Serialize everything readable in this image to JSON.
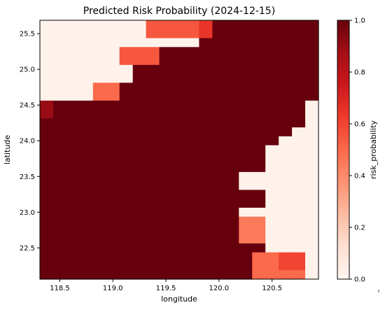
{
  "chart_data": {
    "type": "heatmap",
    "title": "Predicted Risk Probability (2024-12-15)",
    "xlabel": "longitude",
    "ylabel": "latitude",
    "colorbar_label": "risk_probability",
    "colormap": "Reds",
    "colormap_stops": [
      "#fff5f0",
      "#fee0d2",
      "#fcbba1",
      "#fc9272",
      "#fb6a4a",
      "#ef3b2c",
      "#cb181d",
      "#a50f15",
      "#67000d"
    ],
    "vmin": 0.0,
    "vmax": 1.0,
    "x_ticks": [
      118.5,
      119.0,
      119.5,
      120.0,
      120.5
    ],
    "x_tick_labels": [
      "118.5",
      "119.0",
      "119.5",
      "120.0",
      "120.5"
    ],
    "y_ticks": [
      22.5,
      23.0,
      23.5,
      24.0,
      24.5,
      25.0,
      25.5
    ],
    "y_tick_labels": [
      "22.5",
      "23.0",
      "23.5",
      "24.0",
      "24.5",
      "25.0",
      "25.5"
    ],
    "colorbar_ticks": [
      0.0,
      0.2,
      0.4,
      0.6,
      0.8,
      1.0
    ],
    "colorbar_tick_labels": [
      "0.0",
      "0.2",
      "0.4",
      "0.6",
      "0.8",
      "1.0"
    ],
    "xlim": [
      118.3125,
      120.9375
    ],
    "ylim": [
      22.0625,
      25.6875
    ],
    "grid": false,
    "x": [
      118.375,
      118.5,
      118.625,
      118.75,
      118.875,
      119.0,
      119.125,
      119.25,
      119.375,
      119.5,
      119.625,
      119.75,
      119.875,
      120.0,
      120.125,
      120.25,
      120.375,
      120.5,
      120.625,
      120.75,
      120.875
    ],
    "y": [
      25.625,
      25.5,
      25.375,
      25.25,
      25.125,
      25.0,
      24.875,
      24.75,
      24.625,
      24.5,
      24.375,
      24.25,
      24.125,
      24.0,
      23.875,
      23.75,
      23.625,
      23.5,
      23.375,
      23.25,
      23.125,
      23.0,
      22.875,
      22.75,
      22.625,
      22.5,
      22.375,
      22.25,
      22.125
    ],
    "values": [
      [
        0.02,
        0.02,
        0.02,
        0.02,
        0.02,
        0.02,
        0.02,
        0.02,
        0.55,
        0.55,
        0.55,
        0.55,
        0.65,
        1.0,
        1.0,
        1.0,
        1.0,
        1.0,
        1.0,
        1.0,
        1.0
      ],
      [
        0.02,
        0.02,
        0.02,
        0.02,
        0.02,
        0.02,
        0.02,
        0.02,
        0.55,
        0.55,
        0.55,
        0.55,
        0.65,
        1.0,
        1.0,
        1.0,
        1.0,
        1.0,
        1.0,
        1.0,
        1.0
      ],
      [
        0.02,
        0.02,
        0.02,
        0.02,
        0.02,
        0.02,
        0.02,
        0.02,
        0.02,
        0.02,
        0.02,
        0.02,
        1.0,
        1.0,
        1.0,
        1.0,
        1.0,
        1.0,
        1.0,
        1.0,
        1.0
      ],
      [
        0.02,
        0.02,
        0.02,
        0.02,
        0.02,
        0.02,
        0.55,
        0.55,
        0.55,
        1.0,
        1.0,
        1.0,
        1.0,
        1.0,
        1.0,
        1.0,
        1.0,
        1.0,
        1.0,
        1.0,
        1.0
      ],
      [
        0.02,
        0.02,
        0.02,
        0.02,
        0.02,
        0.02,
        0.55,
        0.55,
        0.55,
        1.0,
        1.0,
        1.0,
        1.0,
        1.0,
        1.0,
        1.0,
        1.0,
        1.0,
        1.0,
        1.0,
        1.0
      ],
      [
        0.02,
        0.02,
        0.02,
        0.02,
        0.02,
        0.02,
        0.02,
        1.0,
        1.0,
        1.0,
        1.0,
        1.0,
        1.0,
        1.0,
        1.0,
        1.0,
        1.0,
        1.0,
        1.0,
        1.0,
        1.0
      ],
      [
        0.02,
        0.02,
        0.02,
        0.02,
        0.02,
        0.02,
        0.02,
        1.0,
        1.0,
        1.0,
        1.0,
        1.0,
        1.0,
        1.0,
        1.0,
        1.0,
        1.0,
        1.0,
        1.0,
        1.0,
        1.0
      ],
      [
        0.02,
        0.02,
        0.02,
        0.02,
        0.5,
        0.5,
        1.0,
        1.0,
        1.0,
        1.0,
        1.0,
        1.0,
        1.0,
        1.0,
        1.0,
        1.0,
        1.0,
        1.0,
        1.0,
        1.0,
        1.0
      ],
      [
        0.02,
        0.02,
        0.02,
        0.02,
        0.5,
        0.5,
        1.0,
        1.0,
        1.0,
        1.0,
        1.0,
        1.0,
        1.0,
        1.0,
        1.0,
        1.0,
        1.0,
        1.0,
        1.0,
        1.0,
        1.0
      ],
      [
        0.9,
        1.0,
        1.0,
        1.0,
        1.0,
        1.0,
        1.0,
        1.0,
        1.0,
        1.0,
        1.0,
        1.0,
        1.0,
        1.0,
        1.0,
        1.0,
        1.0,
        1.0,
        1.0,
        1.0,
        0.02
      ],
      [
        0.9,
        1.0,
        1.0,
        1.0,
        1.0,
        1.0,
        1.0,
        1.0,
        1.0,
        1.0,
        1.0,
        1.0,
        1.0,
        1.0,
        1.0,
        1.0,
        1.0,
        1.0,
        1.0,
        1.0,
        0.02
      ],
      [
        1.0,
        1.0,
        1.0,
        1.0,
        1.0,
        1.0,
        1.0,
        1.0,
        1.0,
        1.0,
        1.0,
        1.0,
        1.0,
        1.0,
        1.0,
        1.0,
        1.0,
        1.0,
        1.0,
        1.0,
        0.02
      ],
      [
        1.0,
        1.0,
        1.0,
        1.0,
        1.0,
        1.0,
        1.0,
        1.0,
        1.0,
        1.0,
        1.0,
        1.0,
        1.0,
        1.0,
        1.0,
        1.0,
        1.0,
        1.0,
        1.0,
        0.02,
        0.02
      ],
      [
        1.0,
        1.0,
        1.0,
        1.0,
        1.0,
        1.0,
        1.0,
        1.0,
        1.0,
        1.0,
        1.0,
        1.0,
        1.0,
        1.0,
        1.0,
        1.0,
        1.0,
        1.0,
        0.02,
        0.02,
        0.02
      ],
      [
        1.0,
        1.0,
        1.0,
        1.0,
        1.0,
        1.0,
        1.0,
        1.0,
        1.0,
        1.0,
        1.0,
        1.0,
        1.0,
        1.0,
        1.0,
        1.0,
        1.0,
        0.02,
        0.02,
        0.02,
        0.02
      ],
      [
        1.0,
        1.0,
        1.0,
        1.0,
        1.0,
        1.0,
        1.0,
        1.0,
        1.0,
        1.0,
        1.0,
        1.0,
        1.0,
        1.0,
        1.0,
        1.0,
        1.0,
        0.02,
        0.02,
        0.02,
        0.02
      ],
      [
        1.0,
        1.0,
        1.0,
        1.0,
        1.0,
        1.0,
        1.0,
        1.0,
        1.0,
        1.0,
        1.0,
        1.0,
        1.0,
        1.0,
        1.0,
        1.0,
        1.0,
        0.02,
        0.02,
        0.02,
        0.02
      ],
      [
        1.0,
        1.0,
        1.0,
        1.0,
        1.0,
        1.0,
        1.0,
        1.0,
        1.0,
        1.0,
        1.0,
        1.0,
        1.0,
        1.0,
        1.0,
        0.02,
        0.02,
        0.02,
        0.02,
        0.02,
        0.02
      ],
      [
        1.0,
        1.0,
        1.0,
        1.0,
        1.0,
        1.0,
        1.0,
        1.0,
        1.0,
        1.0,
        1.0,
        1.0,
        1.0,
        1.0,
        1.0,
        0.02,
        0.02,
        0.02,
        0.02,
        0.02,
        0.02
      ],
      [
        1.0,
        1.0,
        1.0,
        1.0,
        1.0,
        1.0,
        1.0,
        1.0,
        1.0,
        1.0,
        1.0,
        1.0,
        1.0,
        1.0,
        1.0,
        1.0,
        1.0,
        0.02,
        0.02,
        0.02,
        0.02
      ],
      [
        1.0,
        1.0,
        1.0,
        1.0,
        1.0,
        1.0,
        1.0,
        1.0,
        1.0,
        1.0,
        1.0,
        1.0,
        1.0,
        1.0,
        1.0,
        1.0,
        1.0,
        0.02,
        0.02,
        0.02,
        0.02
      ],
      [
        1.0,
        1.0,
        1.0,
        1.0,
        1.0,
        1.0,
        1.0,
        1.0,
        1.0,
        1.0,
        1.0,
        1.0,
        1.0,
        1.0,
        1.0,
        0.02,
        0.02,
        0.02,
        0.02,
        0.02,
        0.02
      ],
      [
        1.0,
        1.0,
        1.0,
        1.0,
        1.0,
        1.0,
        1.0,
        1.0,
        1.0,
        1.0,
        1.0,
        1.0,
        1.0,
        1.0,
        1.0,
        0.45,
        0.45,
        0.02,
        0.02,
        0.02,
        0.02
      ],
      [
        1.0,
        1.0,
        1.0,
        1.0,
        1.0,
        1.0,
        1.0,
        1.0,
        1.0,
        1.0,
        1.0,
        1.0,
        1.0,
        1.0,
        1.0,
        0.45,
        0.45,
        0.02,
        0.02,
        0.02,
        0.02
      ],
      [
        1.0,
        1.0,
        1.0,
        1.0,
        1.0,
        1.0,
        1.0,
        1.0,
        1.0,
        1.0,
        1.0,
        1.0,
        1.0,
        1.0,
        1.0,
        0.45,
        0.45,
        0.02,
        0.02,
        0.02,
        0.02
      ],
      [
        1.0,
        1.0,
        1.0,
        1.0,
        1.0,
        1.0,
        1.0,
        1.0,
        1.0,
        1.0,
        1.0,
        1.0,
        1.0,
        1.0,
        1.0,
        1.0,
        1.0,
        0.02,
        0.02,
        0.02,
        0.02
      ],
      [
        1.0,
        1.0,
        1.0,
        1.0,
        1.0,
        1.0,
        1.0,
        1.0,
        1.0,
        1.0,
        1.0,
        1.0,
        1.0,
        1.0,
        1.0,
        1.0,
        0.5,
        0.5,
        0.6,
        0.6,
        0.02
      ],
      [
        1.0,
        1.0,
        1.0,
        1.0,
        1.0,
        1.0,
        1.0,
        1.0,
        1.0,
        1.0,
        1.0,
        1.0,
        1.0,
        1.0,
        1.0,
        1.0,
        0.5,
        0.5,
        0.6,
        0.6,
        0.02
      ],
      [
        1.0,
        1.0,
        1.0,
        1.0,
        1.0,
        1.0,
        1.0,
        1.0,
        1.0,
        1.0,
        1.0,
        1.0,
        1.0,
        1.0,
        1.0,
        1.0,
        0.5,
        0.5,
        0.5,
        0.5,
        0.02
      ]
    ]
  },
  "edge_mark": "‹"
}
